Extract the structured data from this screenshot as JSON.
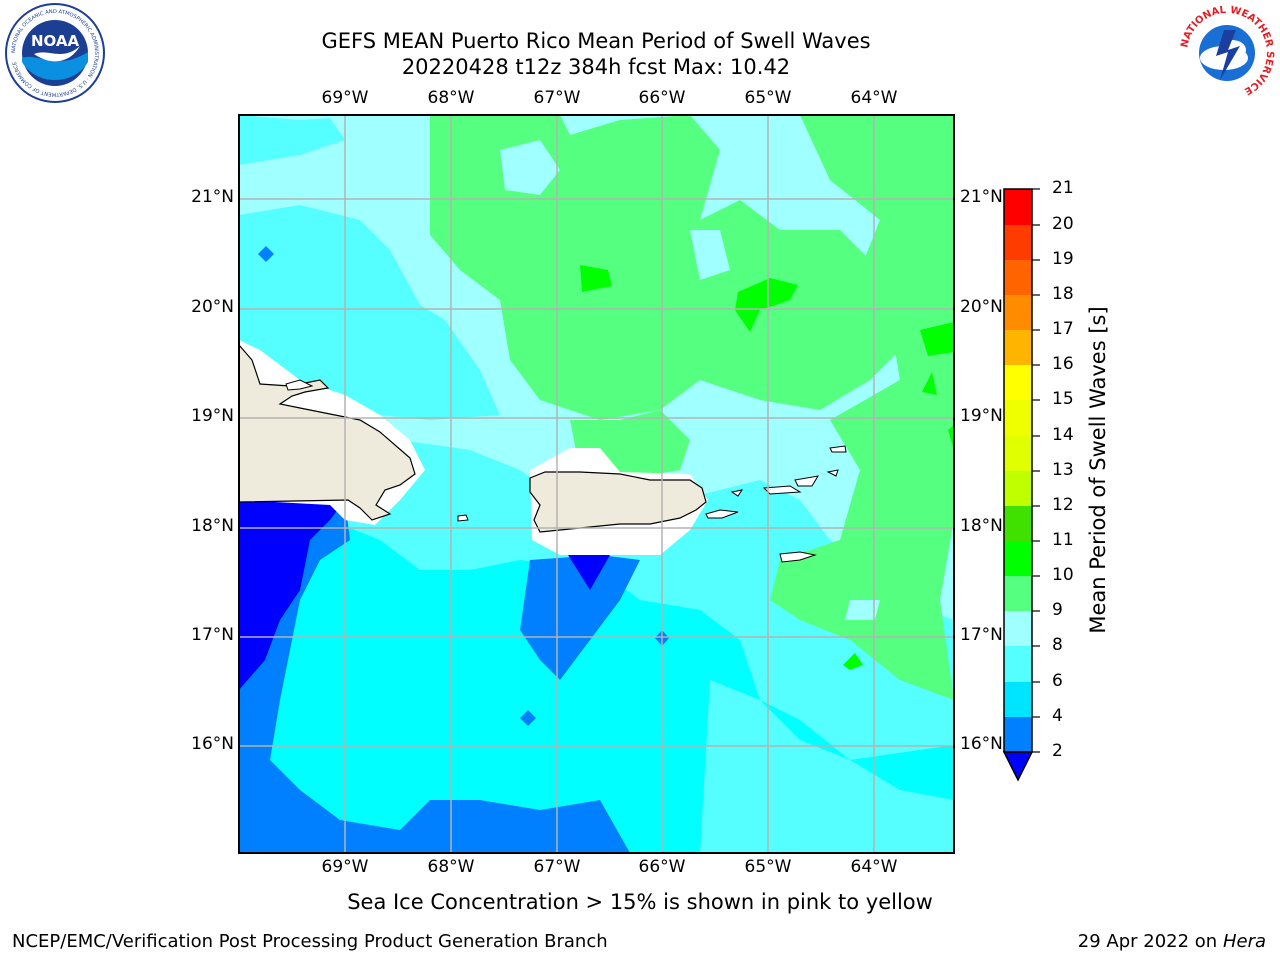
{
  "title": {
    "line1": "GEFS MEAN Puerto Rico Mean Period of Swell Waves",
    "line2": "20220428 t12z 384h fcst   Max: 10.42"
  },
  "map": {
    "lon_labels": [
      "69°W",
      "68°W",
      "67°W",
      "66°W",
      "65°W",
      "64°W"
    ],
    "lat_labels": [
      "21°N",
      "20°N",
      "19°N",
      "18°N",
      "17°N",
      "16°N"
    ],
    "regions": [
      "Hispaniola",
      "Puerto Rico",
      "Virgin Islands",
      "St. Croix",
      "Mona Island"
    ]
  },
  "colorbar": {
    "label": "Mean Period of Swell Waves [s]",
    "ticks": [
      "2",
      "4",
      "6",
      "8",
      "9",
      "10",
      "11",
      "12",
      "13",
      "14",
      "15",
      "16",
      "17",
      "18",
      "19",
      "20",
      "21"
    ],
    "colors": [
      "#0000ff",
      "#0080ff",
      "#00e5ff",
      "#55ffff",
      "#a0ffff",
      "#55ff80",
      "#00ff00",
      "#40e000",
      "#c0ff00",
      "#e0ff00",
      "#ffff00",
      "#ffe000",
      "#ffb400",
      "#ff8c00",
      "#ff6400",
      "#ff3c00",
      "#ff0000"
    ]
  },
  "footer": {
    "note": "Sea Ice Concentration > 15% is shown in pink to yellow",
    "branch": "NCEP/EMC/Verification Post Processing Product Generation Branch",
    "date": "29 Apr 2022 on ",
    "machine": "Hera"
  },
  "logos": {
    "noaa_text": "NOAA",
    "noaa_ring": "NATIONAL OCEANIC AND ATMOSPHERIC ADMINISTRATION · U.S. DEPARTMENT OF COMMERCE",
    "nws_ring": "NATIONAL WEATHER SERVICE"
  }
}
